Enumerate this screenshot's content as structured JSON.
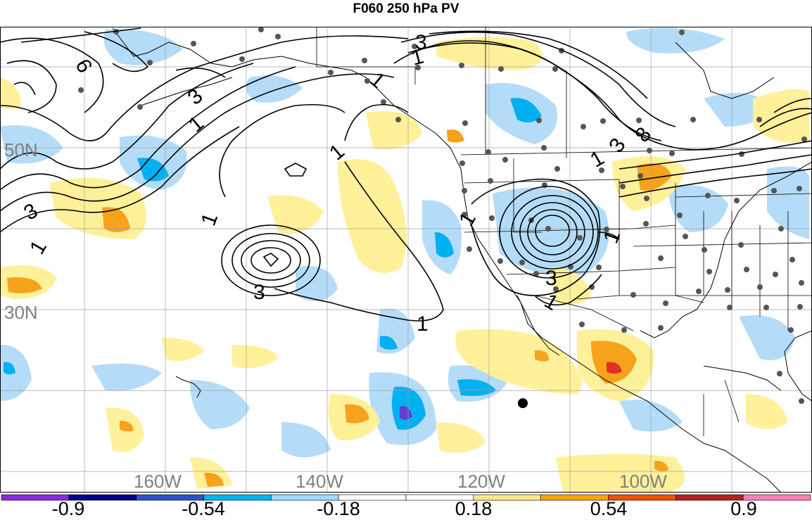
{
  "title": "F060 250 hPa PV",
  "latitude_labels": [
    "50N",
    "30N"
  ],
  "longitude_labels": [
    "160W",
    "140W",
    "120W",
    "100W"
  ],
  "contour_labels": {
    "c1": "1",
    "c3": "3",
    "c6": "6",
    "c8": "8"
  },
  "colorbar": {
    "labels": [
      "-0.9",
      "-0.54",
      "-0.18",
      "0.18",
      "0.54",
      "0.9"
    ],
    "colors": [
      "#8a2be2",
      "#00008b",
      "#2d50c8",
      "#00b4f0",
      "#a0d8f8",
      "#ffffff",
      "#ffffff",
      "#ffe68c",
      "#ffa500",
      "#f05000",
      "#b22222",
      "#ff80b0"
    ]
  },
  "fill_colors": {
    "light_blue": "#b4dcf8",
    "blue": "#00b0f0",
    "purple": "#6040d0",
    "yellow": "#fff09a",
    "orange": "#f7a21b",
    "red": "#e03020",
    "station": "#555555"
  }
}
